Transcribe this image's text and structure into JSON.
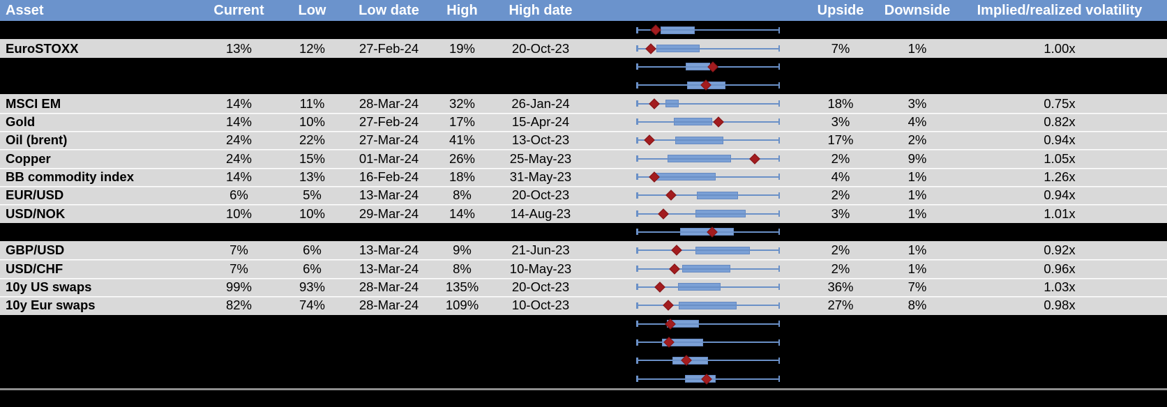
{
  "theme": {
    "header_bg": "#6B93CC",
    "header_text": "#FFFFFF",
    "row_bg": "#D9D9D9",
    "spacer_bg": "#000000",
    "text": "#000000",
    "whisker": "#6A90C7",
    "box_fill": "#7BA0D5",
    "box_border": "#6589C2",
    "marker_fill": "#A31C1F",
    "marker_border": "#811518",
    "divider": "#8E8E8E",
    "separator": "#FFFFFF"
  },
  "header": {
    "asset": "Asset",
    "current": "Current",
    "low": "Low",
    "low_date": "Low date",
    "high": "High",
    "high_date": "High date",
    "upside": "Upside",
    "downside": "Downside",
    "implied_realized": "Implied/realized volatility"
  },
  "chart_data": {
    "type": "box-range",
    "note": "Each row shows a min-max whisker (normalized full width), interquartile-style blue box and red diamond = current value; fractions are positions along the whisker span 0-1.",
    "rows_plot": "see rows[].plot"
  },
  "rows": [
    {
      "kind": "spacer",
      "plot": {
        "box_start": 0.17,
        "box_end": 0.41,
        "marker": 0.135
      }
    },
    {
      "kind": "data",
      "asset": "EuroSTOXX",
      "current": "13%",
      "low": "12%",
      "low_date": "27-Feb-24",
      "high": "19%",
      "high_date": "20-Oct-23",
      "upside": "7%",
      "downside": "1%",
      "implied_realized": "1.00x",
      "plot": {
        "box_start": 0.14,
        "box_end": 0.44,
        "marker": 0.1
      }
    },
    {
      "kind": "spacer",
      "plot": {
        "box_start": 0.345,
        "box_end": 0.515,
        "marker": 0.535
      }
    },
    {
      "kind": "spacer",
      "plot": {
        "box_start": 0.355,
        "box_end": 0.62,
        "marker": 0.485
      }
    },
    {
      "kind": "data",
      "asset": "MSCI EM",
      "current": "14%",
      "low": "11%",
      "low_date": "28-Mar-24",
      "high": "32%",
      "high_date": "26-Jan-24",
      "upside": "18%",
      "downside": "3%",
      "implied_realized": "0.75x",
      "plot": {
        "box_start": 0.205,
        "box_end": 0.295,
        "marker": 0.125
      }
    },
    {
      "kind": "data",
      "asset": "Gold",
      "current": "14%",
      "low": "10%",
      "low_date": "27-Feb-24",
      "high": "17%",
      "high_date": "15-Apr-24",
      "upside": "3%",
      "downside": "4%",
      "implied_realized": "0.82x",
      "plot": {
        "box_start": 0.26,
        "box_end": 0.53,
        "marker": 0.575
      }
    },
    {
      "kind": "data",
      "asset": "Oil (brent)",
      "current": "24%",
      "low": "22%",
      "low_date": "27-Mar-24",
      "high": "41%",
      "high_date": "13-Oct-23",
      "upside": "17%",
      "downside": "2%",
      "implied_realized": "0.94x",
      "plot": {
        "box_start": 0.27,
        "box_end": 0.605,
        "marker": 0.09
      }
    },
    {
      "kind": "data",
      "asset": "Copper",
      "current": "24%",
      "low": "15%",
      "low_date": "01-Mar-24",
      "high": "26%",
      "high_date": "25-May-23",
      "upside": "2%",
      "downside": "9%",
      "implied_realized": "1.05x",
      "plot": {
        "box_start": 0.22,
        "box_end": 0.66,
        "marker": 0.825
      }
    },
    {
      "kind": "data",
      "asset": "BB commodity index",
      "current": "14%",
      "low": "13%",
      "low_date": "16-Feb-24",
      "high": "18%",
      "high_date": "31-May-23",
      "upside": "4%",
      "downside": "1%",
      "implied_realized": "1.26x",
      "plot": {
        "box_start": 0.135,
        "box_end": 0.555,
        "marker": 0.125
      }
    },
    {
      "kind": "data",
      "asset": "EUR/USD",
      "current": "6%",
      "low": "5%",
      "low_date": "13-Mar-24",
      "high": "8%",
      "high_date": "20-Oct-23",
      "upside": "2%",
      "downside": "1%",
      "implied_realized": "0.94x",
      "plot": {
        "box_start": 0.42,
        "box_end": 0.71,
        "marker": 0.245
      }
    },
    {
      "kind": "data",
      "asset": "USD/NOK",
      "current": "10%",
      "low": "10%",
      "low_date": "29-Mar-24",
      "high": "14%",
      "high_date": "14-Aug-23",
      "upside": "3%",
      "downside": "1%",
      "implied_realized": "1.01x",
      "plot": {
        "box_start": 0.415,
        "box_end": 0.76,
        "marker": 0.19
      }
    },
    {
      "kind": "spacer",
      "plot": {
        "box_start": 0.305,
        "box_end": 0.68,
        "marker": 0.53
      }
    },
    {
      "kind": "data",
      "asset": "GBP/USD",
      "current": "7%",
      "low": "6%",
      "low_date": "13-Mar-24",
      "high": "9%",
      "high_date": "21-Jun-23",
      "upside": "2%",
      "downside": "1%",
      "implied_realized": "0.92x",
      "plot": {
        "box_start": 0.415,
        "box_end": 0.79,
        "marker": 0.28
      }
    },
    {
      "kind": "data",
      "asset": "USD/CHF",
      "current": "7%",
      "low": "6%",
      "low_date": "13-Mar-24",
      "high": "8%",
      "high_date": "10-May-23",
      "upside": "2%",
      "downside": "1%",
      "implied_realized": "0.96x",
      "plot": {
        "box_start": 0.32,
        "box_end": 0.655,
        "marker": 0.265
      }
    },
    {
      "kind": "data",
      "asset": "10y US swaps",
      "current": "99%",
      "low": "93%",
      "low_date": "28-Mar-24",
      "high": "135%",
      "high_date": "20-Oct-23",
      "upside": "36%",
      "downside": "7%",
      "implied_realized": "1.03x",
      "plot": {
        "box_start": 0.29,
        "box_end": 0.585,
        "marker": 0.165
      }
    },
    {
      "kind": "data",
      "asset": "10y Eur swaps",
      "current": "82%",
      "low": "74%",
      "low_date": "28-Mar-24",
      "high": "109%",
      "high_date": "10-Oct-23",
      "upside": "27%",
      "downside": "8%",
      "implied_realized": "0.98x",
      "plot": {
        "box_start": 0.295,
        "box_end": 0.7,
        "marker": 0.225
      }
    },
    {
      "kind": "spacer",
      "plot": {
        "box_start": 0.215,
        "box_end": 0.435,
        "marker": 0.24
      }
    },
    {
      "kind": "spacer",
      "plot": {
        "box_start": 0.18,
        "box_end": 0.465,
        "marker": 0.23
      }
    },
    {
      "kind": "spacer",
      "plot": {
        "box_start": 0.25,
        "box_end": 0.5,
        "marker": 0.35
      }
    },
    {
      "kind": "spacer",
      "plot": {
        "box_start": 0.34,
        "box_end": 0.555,
        "marker": 0.49
      }
    }
  ]
}
